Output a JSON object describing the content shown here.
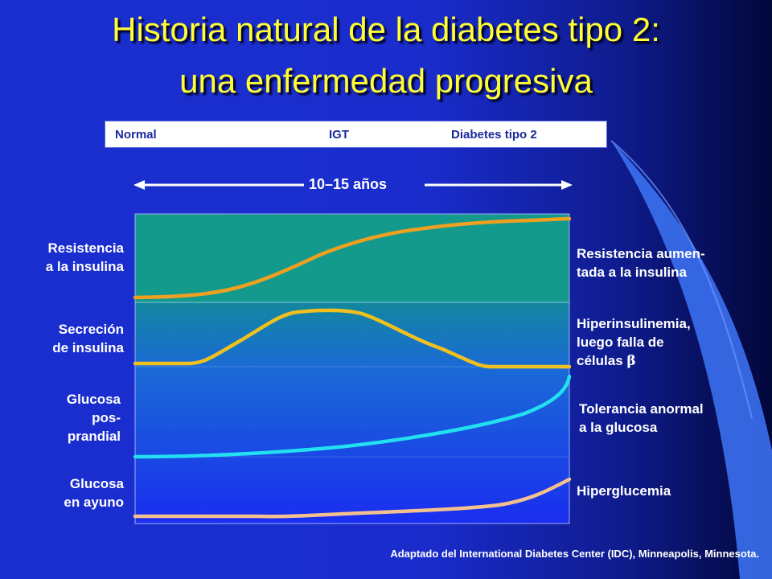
{
  "title": {
    "line1": "Historia natural de la diabetes tipo 2:",
    "line2": "una enfermedad progresiva"
  },
  "stages": {
    "normal": "Normal",
    "igt": "IGT",
    "diabetes": "Diabetes tipo 2"
  },
  "duration": "10–15 años",
  "left_labels": {
    "resistance": "Resistencia\na la insulina",
    "secretion": "Secreción\nde insulina",
    "postprandial": "Glucosa\npos-\nprandial",
    "fasting": "Glucosa\nen ayuno"
  },
  "right_labels": {
    "resistance": "Resistencia aumen-\ntada a la insulina",
    "secretion_prefix": "Hiperinsulinemia,\nluego falla de\ncélulas ",
    "secretion_symbol": "β",
    "postprandial": "Tolerancia anormal\na la glucosa",
    "fasting": "Hiperglucemia"
  },
  "citation": "Adaptado del International Diabetes Center (IDC), Minneapolis, Minnesota.",
  "colors": {
    "title": "#ffff33",
    "resistance_curve": "#f0a020",
    "secretion_curve": "#f0c020",
    "postprandial_curve": "#22e0f0",
    "fasting_curve": "#f5c090",
    "panel_top": "#149a8c"
  }
}
